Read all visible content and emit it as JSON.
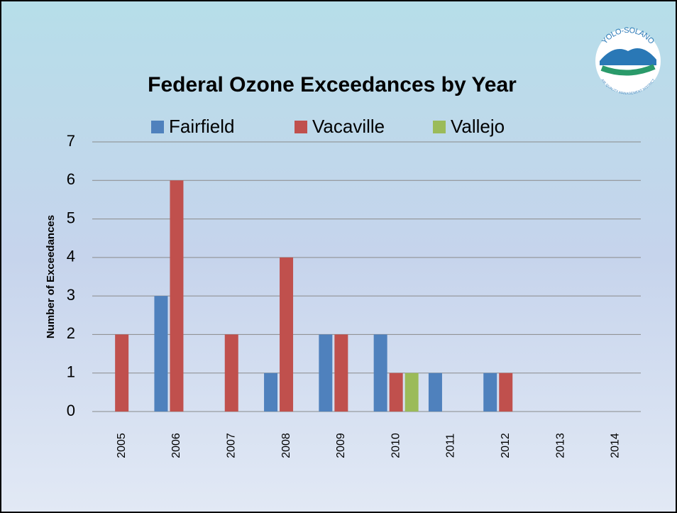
{
  "chart_data": {
    "type": "bar",
    "title": "Federal Ozone Exceedances by Year",
    "y_label": "Number of Exceedances",
    "categories": [
      "2005",
      "2006",
      "2007",
      "2008",
      "2009",
      "2010",
      "2011",
      "2012",
      "2013",
      "2014"
    ],
    "series": [
      {
        "name": "Fairfield",
        "color": "#4f81bd",
        "values": [
          0,
          3,
          0,
          1,
          2,
          2,
          1,
          1,
          0,
          0
        ]
      },
      {
        "name": "Vacaville",
        "color": "#c0504d",
        "values": [
          2,
          6,
          2,
          4,
          2,
          1,
          0,
          1,
          0,
          0
        ]
      },
      {
        "name": "Vallejo",
        "color": "#9bbb59",
        "values": [
          0,
          0,
          0,
          0,
          0,
          1,
          0,
          0,
          0,
          0
        ]
      }
    ],
    "ylim": [
      0,
      7
    ],
    "yticks": [
      0,
      1,
      2,
      3,
      4,
      5,
      6,
      7
    ],
    "grid": true,
    "legend": "top"
  },
  "logo": {
    "top": "YOLO-SOLANO",
    "bottom": "AIR QUALITY MANAGEMENT DISTRICT"
  }
}
